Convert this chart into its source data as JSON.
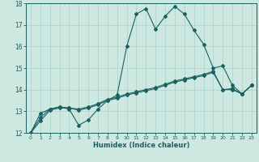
{
  "xlabel": "Humidex (Indice chaleur)",
  "xlim": [
    -0.5,
    23.5
  ],
  "ylim": [
    12,
    18
  ],
  "yticks": [
    12,
    13,
    14,
    15,
    16,
    17,
    18
  ],
  "xticks": [
    0,
    1,
    2,
    3,
    4,
    5,
    6,
    7,
    8,
    9,
    10,
    11,
    12,
    13,
    14,
    15,
    16,
    17,
    18,
    19,
    20,
    21,
    22,
    23
  ],
  "bg_color": "#cce8e0",
  "grid_color": "#aad0c8",
  "line_color": "#1a6060",
  "line1_y": [
    12.0,
    12.9,
    13.1,
    13.2,
    13.1,
    12.35,
    12.6,
    13.1,
    13.5,
    13.75,
    16.0,
    17.5,
    17.75,
    16.8,
    17.4,
    17.85,
    17.5,
    16.75,
    16.1,
    15.0,
    15.1,
    14.2,
    13.8,
    14.2
  ],
  "line2_y": [
    12.0,
    12.7,
    13.1,
    13.2,
    13.15,
    13.1,
    13.2,
    13.35,
    13.55,
    13.65,
    13.8,
    13.9,
    14.0,
    14.1,
    14.25,
    14.4,
    14.5,
    14.6,
    14.7,
    14.85,
    14.0,
    14.05,
    13.8,
    14.2
  ],
  "line3_y": [
    12.0,
    12.55,
    13.05,
    13.15,
    13.15,
    13.05,
    13.15,
    13.3,
    13.5,
    13.6,
    13.75,
    13.85,
    13.95,
    14.05,
    14.2,
    14.35,
    14.45,
    14.55,
    14.65,
    14.8,
    14.0,
    14.0,
    13.8,
    14.2
  ]
}
